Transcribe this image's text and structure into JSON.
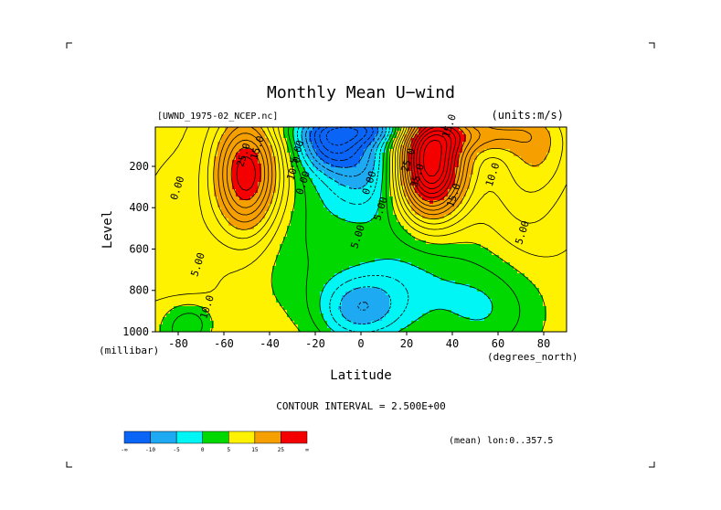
{
  "chart_data": {
    "type": "heatmap",
    "subtype": "filled-contour",
    "title": "Monthly Mean U−wind",
    "dataset": "[UWND_1975-02_NCEP.nc]",
    "units": "(units:m/s)",
    "xlabel": "Latitude",
    "ylabel": "Level",
    "xunit": "(degrees_north)",
    "yunit": "(millibar)",
    "xlim": [
      -90,
      90
    ],
    "ylim": [
      1000,
      10
    ],
    "xticks": [
      -80,
      -60,
      -40,
      -20,
      0,
      20,
      40,
      60,
      80
    ],
    "yticks": [
      200,
      400,
      600,
      800,
      1000
    ],
    "contour_interval_text": "CONTOUR INTERVAL = 2.500E+00",
    "contour_interval": 2.5,
    "negative_contours": "dashed",
    "mean_text": "(mean) lon:0..357.5",
    "colorbar": {
      "ticks": [
        "-∞",
        "-10",
        "-5",
        "0",
        "5",
        "15",
        "25",
        "∞"
      ],
      "colors": [
        "#0a64f6",
        "#1eaaf2",
        "#00f5f5",
        "#00d800",
        "#fff200",
        "#f5a000",
        "#f50000"
      ]
    },
    "contour_labels": [
      {
        "text": "15.0",
        "lat": 40,
        "lev": 10
      },
      {
        "text": "15.0",
        "lat": -44,
        "lev": 115
      },
      {
        "text": "25.0",
        "lat": -50,
        "lev": 150
      },
      {
        "text": "-5.00",
        "lat": -27,
        "lev": 150
      },
      {
        "text": "10.0",
        "lat": -28,
        "lev": 215
      },
      {
        "text": "0.00",
        "lat": -24,
        "lev": 285
      },
      {
        "text": "0.00",
        "lat": 5,
        "lev": 285
      },
      {
        "text": "25.0",
        "lat": 22,
        "lev": 175
      },
      {
        "text": "35.0",
        "lat": 26,
        "lev": 250
      },
      {
        "text": "15.0",
        "lat": 42,
        "lev": 345
      },
      {
        "text": "5.00",
        "lat": 10,
        "lev": 410
      },
      {
        "text": "10.0",
        "lat": 59,
        "lev": 245
      },
      {
        "text": "5.00",
        "lat": 72,
        "lev": 525
      },
      {
        "text": "0.00",
        "lat": -79,
        "lev": 310
      },
      {
        "text": "5.00",
        "lat": 0,
        "lev": 545
      },
      {
        "text": "5.00",
        "lat": -70,
        "lev": 680
      },
      {
        "text": "10.0",
        "lat": -66,
        "lev": 885
      }
    ]
  }
}
